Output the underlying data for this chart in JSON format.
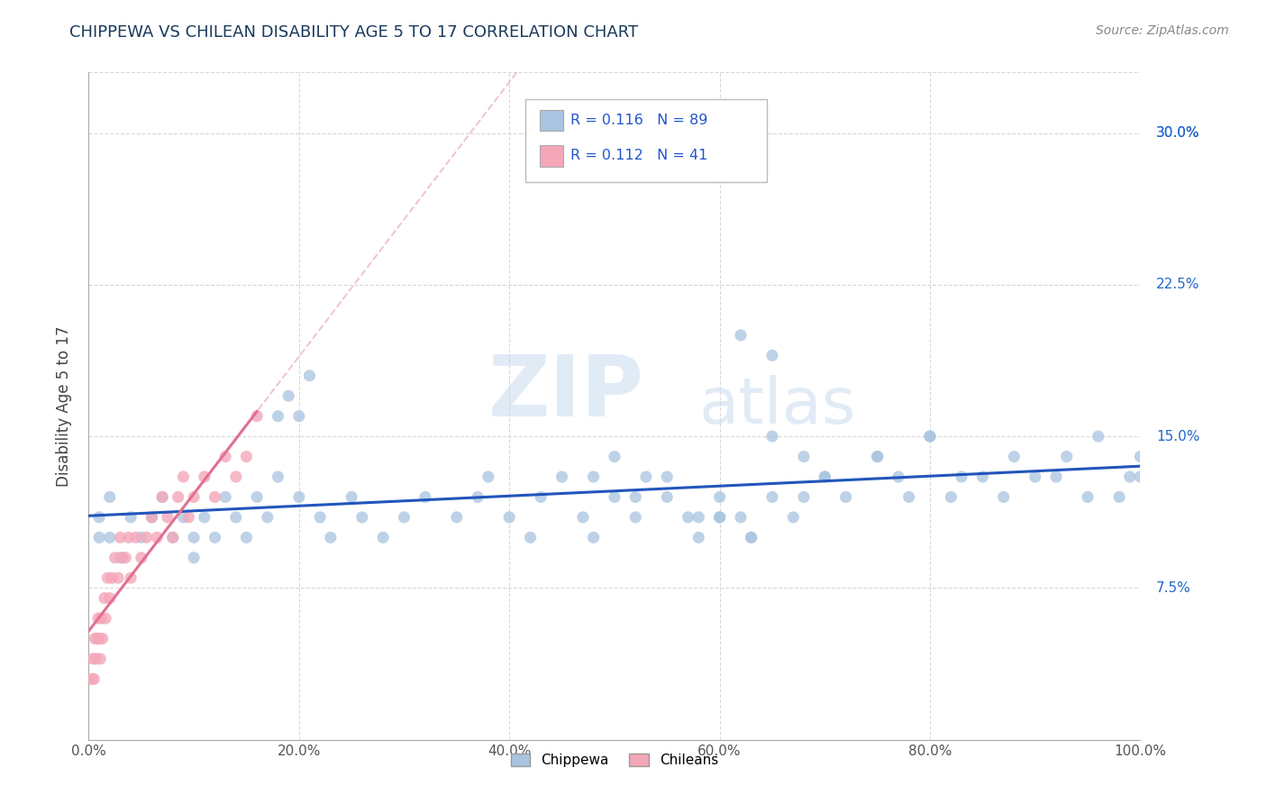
{
  "title": "CHIPPEWA VS CHILEAN DISABILITY AGE 5 TO 17 CORRELATION CHART",
  "source_text": "Source: ZipAtlas.com",
  "ylabel": "Disability Age 5 to 17",
  "xlim": [
    0,
    100
  ],
  "ylim": [
    0,
    33
  ],
  "xtick_values": [
    0,
    20,
    40,
    60,
    80,
    100
  ],
  "xtick_labels": [
    "0.0%",
    "20.0%",
    "40.0%",
    "60.0%",
    "80.0%",
    "100.0%"
  ],
  "ytick_labels": [
    "7.5%",
    "15.0%",
    "22.5%",
    "30.0%"
  ],
  "ytick_values": [
    7.5,
    15.0,
    22.5,
    30.0
  ],
  "watermark_line1": "ZIP",
  "watermark_line2": "atlas",
  "legend_text1": "R = 0.116   N = 89",
  "legend_text2": "R = 0.112   N = 41",
  "chippewa_color": "#a8c4e0",
  "chilean_color": "#f4a7b9",
  "chippewa_line_color": "#2255bb",
  "chilean_line_color": "#e07090",
  "title_color": "#1a3a5c",
  "source_color": "#888888",
  "background_color": "#ffffff",
  "grid_color": "#d8d8d8",
  "right_label_color": "#2266cc",
  "chippewa_x": [
    1,
    1,
    2,
    2,
    3,
    4,
    5,
    6,
    7,
    8,
    9,
    10,
    10,
    11,
    12,
    13,
    14,
    15,
    16,
    17,
    18,
    20,
    22,
    23,
    25,
    26,
    28,
    30,
    32,
    35,
    37,
    38,
    40,
    42,
    43,
    45,
    47,
    48,
    50,
    52,
    53,
    55,
    57,
    58,
    60,
    60,
    62,
    63,
    65,
    67,
    68,
    70,
    72,
    75,
    77,
    78,
    80,
    82,
    83,
    85,
    87,
    88,
    90,
    92,
    93,
    95,
    96,
    98,
    99,
    100,
    100,
    62,
    65,
    18,
    19,
    20,
    21,
    48,
    50,
    52,
    55,
    58,
    60,
    63,
    65,
    68,
    70,
    75,
    80
  ],
  "chippewa_y": [
    11,
    10,
    10,
    12,
    9,
    11,
    10,
    11,
    12,
    10,
    11,
    10,
    9,
    11,
    10,
    12,
    11,
    10,
    12,
    11,
    13,
    12,
    11,
    10,
    12,
    11,
    10,
    11,
    12,
    11,
    12,
    13,
    11,
    10,
    12,
    13,
    11,
    10,
    12,
    11,
    13,
    12,
    11,
    10,
    11,
    12,
    11,
    10,
    12,
    11,
    12,
    13,
    12,
    14,
    13,
    12,
    15,
    12,
    13,
    13,
    12,
    14,
    13,
    13,
    14,
    12,
    15,
    12,
    13,
    13,
    14,
    20,
    19,
    16,
    17,
    16,
    18,
    13,
    14,
    12,
    13,
    11,
    11,
    10,
    15,
    14,
    13,
    14,
    15
  ],
  "chilean_x": [
    0.3,
    0.4,
    0.5,
    0.6,
    0.7,
    0.8,
    0.9,
    1.0,
    1.1,
    1.2,
    1.3,
    1.5,
    1.6,
    1.8,
    2.0,
    2.2,
    2.5,
    2.8,
    3.0,
    3.2,
    3.5,
    3.8,
    4.0,
    4.5,
    5.0,
    5.5,
    6.0,
    6.5,
    7.0,
    7.5,
    8.0,
    8.5,
    9.0,
    9.5,
    10.0,
    11.0,
    12.0,
    13.0,
    14.0,
    15.0,
    16.0
  ],
  "chilean_y": [
    3,
    4,
    3,
    5,
    4,
    5,
    6,
    5,
    4,
    6,
    5,
    7,
    6,
    8,
    7,
    8,
    9,
    8,
    10,
    9,
    9,
    10,
    8,
    10,
    9,
    10,
    11,
    10,
    12,
    11,
    10,
    12,
    13,
    11,
    12,
    13,
    12,
    14,
    13,
    14,
    16
  ],
  "chilean_trend_x0": 0,
  "chilean_trend_y0": 3.5,
  "chilean_trend_x1": 16,
  "chilean_trend_y1": 15.5,
  "chippewa_trend_x0": 0,
  "chippewa_trend_y0": 11.2,
  "chippewa_trend_x1": 100,
  "chippewa_trend_y1": 13.5
}
